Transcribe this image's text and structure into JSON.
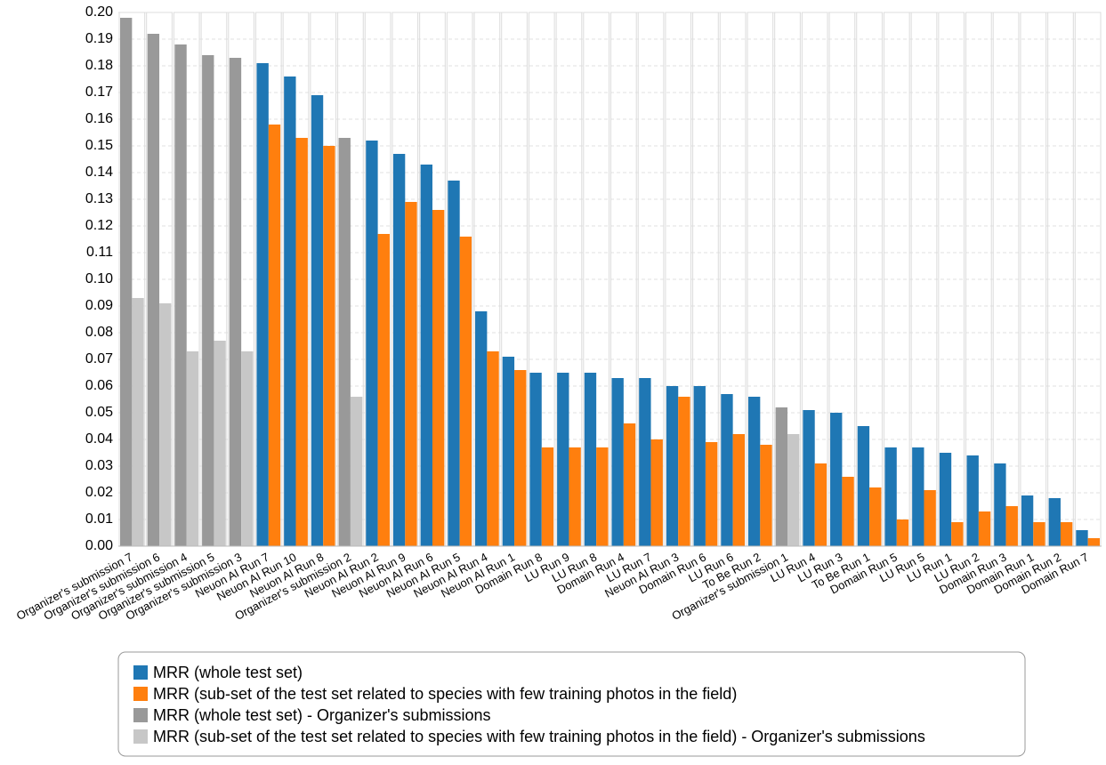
{
  "chart_data": {
    "type": "bar",
    "categories": [
      "Organizer's submission 7",
      "Organizer's submission 6",
      "Organizer's submission 4",
      "Organizer's submission 5",
      "Organizer's submission 3",
      "Neuon AI Run 7",
      "Neuon AI Run 10",
      "Neuon AI Run 8",
      "Organizer's submission 2",
      "Neuon AI Run 2",
      "Neuon AI Run 9",
      "Neuon AI Run 6",
      "Neuon AI Run 5",
      "Neuon AI Run 4",
      "Neuon AI Run 1",
      "Domain Run 8",
      "LU Run 9",
      "LU Run 8",
      "Domain Run 4",
      "LU Run 7",
      "Neuon AI Run 3",
      "Domain Run 6",
      "LU Run 6",
      "To Be Run 2",
      "Organizer's submission 1",
      "LU Run 4",
      "LU Run 3",
      "To Be Run 1",
      "Domain Run 5",
      "LU Run 5",
      "LU Run 1",
      "LU Run 2",
      "Domain Run 3",
      "Domain Run 1",
      "Domain Run 2",
      "Domain Run 7"
    ],
    "series": [
      {
        "name": "MRR (whole test set)",
        "color": "#1f77b4",
        "values": [
          null,
          null,
          null,
          null,
          null,
          0.181,
          0.176,
          0.169,
          null,
          0.152,
          0.147,
          0.143,
          0.137,
          0.088,
          0.071,
          0.065,
          0.065,
          0.065,
          0.063,
          0.063,
          0.06,
          0.06,
          0.057,
          0.056,
          null,
          0.051,
          0.05,
          0.045,
          0.037,
          0.037,
          0.035,
          0.034,
          0.031,
          0.019,
          0.018,
          0.006
        ]
      },
      {
        "name": "MRR (sub-set of the test set related to species with few training photos in the field)",
        "color": "#ff7f0e",
        "values": [
          null,
          null,
          null,
          null,
          null,
          0.158,
          0.153,
          0.15,
          null,
          0.117,
          0.129,
          0.126,
          0.116,
          0.073,
          0.066,
          0.037,
          0.037,
          0.037,
          0.046,
          0.04,
          0.056,
          0.039,
          0.042,
          0.038,
          null,
          0.031,
          0.026,
          0.022,
          0.01,
          0.021,
          0.009,
          0.013,
          0.015,
          0.009,
          0.009,
          0.003
        ]
      },
      {
        "name": "MRR (whole test set) - Organizer's submissions",
        "color": "#999999",
        "values": [
          0.198,
          0.192,
          0.188,
          0.184,
          0.183,
          null,
          null,
          null,
          0.153,
          null,
          null,
          null,
          null,
          null,
          null,
          null,
          null,
          null,
          null,
          null,
          null,
          null,
          null,
          null,
          0.052,
          null,
          null,
          null,
          null,
          null,
          null,
          null,
          null,
          null,
          null,
          null
        ]
      },
      {
        "name": "MRR (sub-set of the test set related to species with few training photos in the field) - Organizer's submissions",
        "color": "#c7c7c7",
        "values": [
          0.093,
          0.091,
          0.073,
          0.077,
          0.073,
          null,
          null,
          null,
          0.056,
          null,
          null,
          null,
          null,
          null,
          null,
          null,
          null,
          null,
          null,
          null,
          null,
          null,
          null,
          null,
          0.042,
          null,
          null,
          null,
          null,
          null,
          null,
          null,
          null,
          null,
          null,
          null
        ]
      }
    ],
    "ylim": [
      0,
      0.2
    ],
    "yticks": [
      {
        "value": 0,
        "label": "0.00"
      },
      {
        "value": 0.01,
        "label": "0.01"
      },
      {
        "value": 0.02,
        "label": "0.02"
      },
      {
        "value": 0.03,
        "label": "0.03"
      },
      {
        "value": 0.04,
        "label": "0.04"
      },
      {
        "value": 0.05,
        "label": "0.05"
      },
      {
        "value": 0.06,
        "label": "0.06"
      },
      {
        "value": 0.07,
        "label": "0.07"
      },
      {
        "value": 0.08,
        "label": "0.08"
      },
      {
        "value": 0.09,
        "label": "0.09"
      },
      {
        "value": 0.1,
        "label": "0.10"
      },
      {
        "value": 0.11,
        "label": "0.11"
      },
      {
        "value": 0.12,
        "label": "0.12"
      },
      {
        "value": 0.13,
        "label": "0.13"
      },
      {
        "value": 0.14,
        "label": "0.14"
      },
      {
        "value": 0.15,
        "label": "0.15"
      },
      {
        "value": 0.16,
        "label": "0.16"
      },
      {
        "value": 0.17,
        "label": "0.17"
      },
      {
        "value": 0.18,
        "label": "0.18"
      },
      {
        "value": 0.19,
        "label": "0.19"
      },
      {
        "value": 0.2,
        "label": "0.20"
      }
    ],
    "grid": true
  }
}
